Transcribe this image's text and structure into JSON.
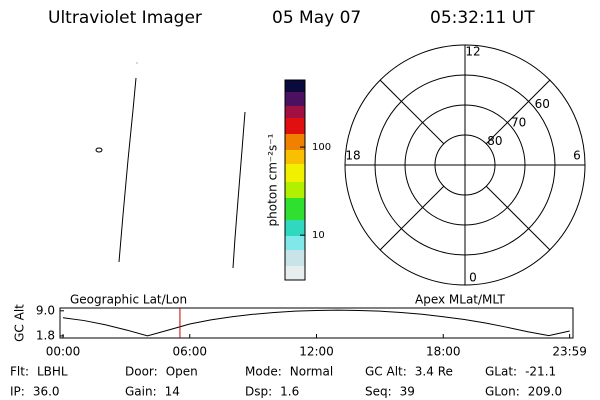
{
  "header": {
    "instrument": "Ultraviolet Imager",
    "date": "05 May 07",
    "time": "05:32:11 UT"
  },
  "colorbar": {
    "label": "photon cm⁻²s⁻¹",
    "log_scale": true,
    "lim": [
      3.1,
      577
    ],
    "ticks": [
      10,
      100
    ]
  },
  "polar": {
    "lat_lim": [
      90,
      50
    ],
    "lat_ticks": [
      80,
      70,
      60
    ],
    "mlt_ticks": [
      12,
      18,
      6,
      0
    ]
  },
  "timeline": {
    "left_label": "Geographic Lat/Lon",
    "right_label": "Apex MLat/MLT",
    "ylabel": "GC Alt",
    "ylim": [
      1.2,
      9.8
    ],
    "yticks": [
      {
        "value": 9.0,
        "label": "9.0"
      },
      1.8
    ],
    "xlim": [
      0,
      24
    ],
    "xticks": [
      {
        "value": 0,
        "label": "00:00"
      },
      {
        "value": 6,
        "label": "06:00"
      },
      {
        "value": 12,
        "label": "12:00"
      },
      {
        "value": 18,
        "label": "18:00"
      },
      {
        "value": 23.983,
        "label": "23:59"
      }
    ],
    "x": [
      0,
      1,
      2,
      3,
      4,
      5,
      6,
      7,
      8,
      9,
      10,
      11,
      12,
      13,
      14,
      15,
      16,
      17,
      18,
      19,
      20,
      21,
      22,
      23,
      23.983
    ],
    "values": [
      7.0,
      6.2,
      5.0,
      3.5,
      1.8,
      3.5,
      5.2,
      6.4,
      7.3,
      8.0,
      8.5,
      8.9,
      9.1,
      9.2,
      9.1,
      8.9,
      8.5,
      8.0,
      7.3,
      6.5,
      5.5,
      4.3,
      3.0,
      1.9,
      3.2
    ],
    "current_time": 5.536,
    "current_color": "#cc0000"
  },
  "info": {
    "rows": [
      [
        [
          "Flt:",
          "LBHL"
        ],
        [
          "Door:",
          "Open"
        ],
        [
          "Mode:",
          "Normal"
        ],
        [
          "GC Alt:",
          "3.4 Re"
        ],
        [
          "GLat:",
          "-21.1"
        ]
      ],
      [
        [
          "IP:",
          "36.0"
        ],
        [
          "Gain:",
          "14"
        ],
        [
          "Dsp:",
          "1.6"
        ],
        [
          "Seq:",
          "39"
        ],
        [
          "GLon:",
          "209.0"
        ]
      ]
    ]
  }
}
